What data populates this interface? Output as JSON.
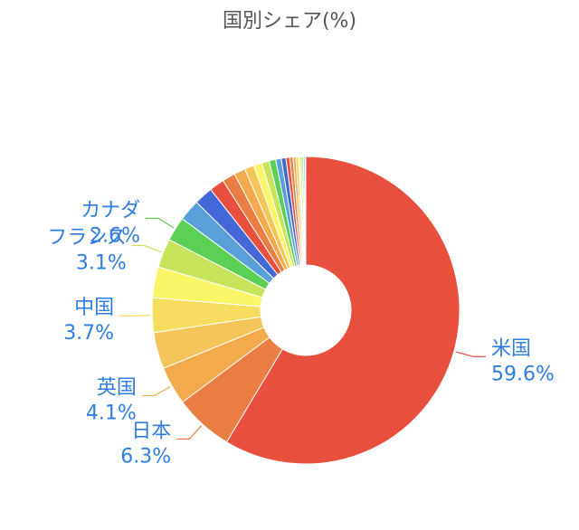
{
  "chart_data": {
    "type": "pie",
    "donut": true,
    "title": "国別シェア(%)",
    "slices": [
      {
        "label": "米国",
        "value": 59.6,
        "value_label": "59.6%",
        "color": "#e94f3d"
      },
      {
        "label": "日本",
        "value": 6.3,
        "value_label": "6.3%",
        "color": "#ea7d43"
      },
      {
        "label": "英国",
        "value": 4.1,
        "value_label": "4.1%",
        "color": "#f2aa4d"
      },
      {
        "label": "",
        "value": 3.9,
        "color": "#f5c45a"
      },
      {
        "label": "中国",
        "value": 3.7,
        "value_label": "3.7%",
        "color": "#f6dd60"
      },
      {
        "label": "",
        "value": 3.3,
        "color": "#f8f566"
      },
      {
        "label": "フランス",
        "value": 3.1,
        "value_label": "3.1%",
        "color": "#c8e45c"
      },
      {
        "label": "カナダ",
        "value": 2.6,
        "value_label": "2.6%",
        "color": "#5ccf55"
      },
      {
        "label": "",
        "value": 2.3,
        "color": "#5aa0d8"
      },
      {
        "label": "",
        "value": 2.0,
        "color": "#4368d8"
      },
      {
        "label": "",
        "value": 1.6,
        "color": "#e94f3d"
      },
      {
        "label": "",
        "value": 1.4,
        "color": "#ea7d43"
      },
      {
        "label": "",
        "value": 1.2,
        "color": "#f2aa4d"
      },
      {
        "label": "",
        "value": 1.0,
        "color": "#f5c45a"
      },
      {
        "label": "",
        "value": 0.9,
        "color": "#f8f566"
      },
      {
        "label": "",
        "value": 0.8,
        "color": "#c8e45c"
      },
      {
        "label": "",
        "value": 0.7,
        "color": "#5ccf55"
      },
      {
        "label": "",
        "value": 0.6,
        "color": "#5aa0d8"
      },
      {
        "label": "",
        "value": 0.5,
        "color": "#4368d8"
      },
      {
        "label": "",
        "value": 0.4,
        "color": "#e94f3d"
      },
      {
        "label": "",
        "value": 0.35,
        "color": "#ea7d43"
      },
      {
        "label": "",
        "value": 0.3,
        "color": "#f2aa4d"
      },
      {
        "label": "",
        "value": 0.25,
        "color": "#f5c45a"
      },
      {
        "label": "",
        "value": 0.2,
        "color": "#f8f566"
      },
      {
        "label": "",
        "value": 0.2,
        "color": "#c8e45c"
      },
      {
        "label": "",
        "value": 0.15,
        "color": "#5ccf55"
      },
      {
        "label": "",
        "value": 0.15,
        "color": "#5aa0d8"
      },
      {
        "label": "",
        "value": 0.1,
        "color": "#4368d8"
      }
    ]
  }
}
